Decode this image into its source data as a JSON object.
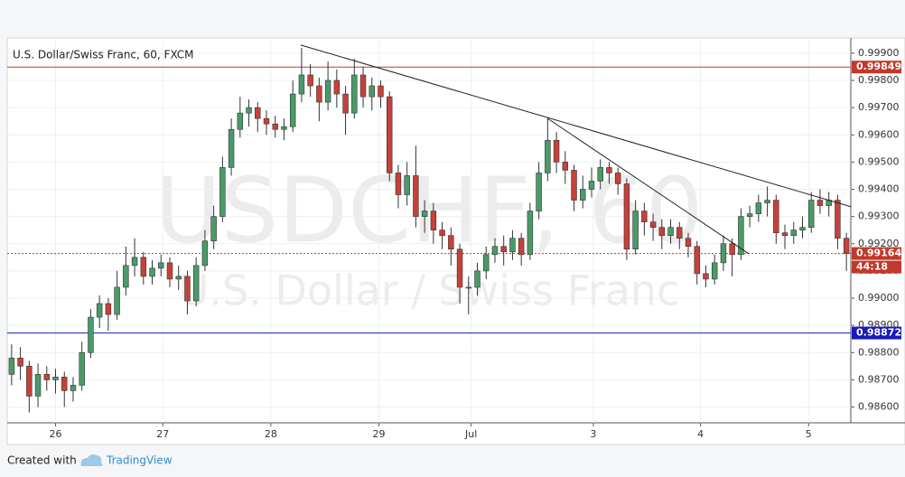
{
  "chart_data": {
    "type": "candlestick",
    "title": "U.S. Dollar/Swiss Franc, 60, FXCM",
    "watermark": "USDCHF, 60",
    "watermark_subtitle": "U.S. Dollar / Swiss Franc",
    "footer": {
      "prefix": "Created with",
      "brand": "TradingView"
    },
    "countdown": "44:18",
    "up_color": "#4a9a6a",
    "down_color": "#c8403a",
    "wick_color": "#333333",
    "grid": true,
    "xlim": [
      -0.5,
      95.5
    ],
    "xticks": [
      {
        "value": 5,
        "label": "26"
      },
      {
        "value": 17.2,
        "label": "27"
      },
      {
        "value": 29.5,
        "label": "28"
      },
      {
        "value": 41.8,
        "label": "29"
      },
      {
        "value": 52.3,
        "label": "Jul"
      },
      {
        "value": 66.2,
        "label": "3"
      },
      {
        "value": 78.4,
        "label": "4"
      },
      {
        "value": 90.7,
        "label": "5"
      }
    ],
    "ylim": [
      0.98542,
      0.99956
    ],
    "yticks": [
      {
        "value": 0.986,
        "label": "0.98600"
      },
      {
        "value": 0.987,
        "label": "0.98700"
      },
      {
        "value": 0.988,
        "label": "0.98800"
      },
      {
        "value": 0.989,
        "label": "0.98900"
      },
      {
        "value": 0.99,
        "label": "0.99000"
      },
      {
        "value": 0.991,
        "label": "0.99100"
      },
      {
        "value": 0.992,
        "label": "0.99200"
      },
      {
        "value": 0.993,
        "label": "0.99300"
      },
      {
        "value": 0.994,
        "label": "0.99400"
      },
      {
        "value": 0.995,
        "label": "0.99500"
      },
      {
        "value": 0.996,
        "label": "0.99600"
      },
      {
        "value": 0.997,
        "label": "0.99700"
      },
      {
        "value": 0.998,
        "label": "0.99800"
      },
      {
        "value": 0.999,
        "label": "0.99900"
      }
    ],
    "price_lines": [
      {
        "price": 0.99849,
        "color": "#c0392b",
        "style": "solid"
      },
      {
        "price": 0.98872,
        "color": "#1a1ab8",
        "style": "solid"
      },
      {
        "price": 0.99164,
        "color": "#c0392b",
        "style": "dotted"
      }
    ],
    "trend_lines": [
      {
        "x": [
          32.9,
          95.5
        ],
        "y": [
          0.9993,
          0.99336
        ]
      },
      {
        "x": [
          60.96,
          83.9
        ],
        "y": [
          0.99661,
          0.99163
        ]
      }
    ],
    "open": [
      0.9872,
      0.9878,
      0.9875,
      0.9864,
      0.9872,
      0.987,
      0.9871,
      0.9866,
      0.9868,
      0.988,
      0.9893,
      0.9898,
      0.9894,
      0.9904,
      0.9912,
      0.9915,
      0.9908,
      0.9911,
      0.9913,
      0.9907,
      0.9908,
      0.9899,
      0.9912,
      0.9921,
      0.993,
      0.9948,
      0.9962,
      0.9968,
      0.997,
      0.9966,
      0.9964,
      0.9962,
      0.9963,
      0.9975,
      0.9982,
      0.9978,
      0.9972,
      0.998,
      0.9975,
      0.9968,
      0.9982,
      0.9974,
      0.9978,
      0.9974,
      0.9946,
      0.9938,
      0.9945,
      0.993,
      0.9932,
      0.9925,
      0.9923,
      0.9918,
      0.9904,
      0.9904,
      0.991,
      0.9916,
      0.9919,
      0.9917,
      0.9922,
      0.9916,
      0.9932,
      0.9946,
      0.9958,
      0.995,
      0.9947,
      0.9936,
      0.994,
      0.9943,
      0.9948,
      0.9946,
      0.9942,
      0.9918,
      0.9932,
      0.9928,
      0.9926,
      0.9923,
      0.9926,
      0.9922,
      0.9919,
      0.9909,
      0.9907,
      0.9913,
      0.992,
      0.9916,
      0.993,
      0.9931,
      0.9935,
      0.9936,
      0.9924,
      0.9923,
      0.9925,
      0.9926,
      0.9936,
      0.9934,
      0.9936,
      0.9922
    ],
    "high": [
      0.9883,
      0.9882,
      0.9877,
      0.9876,
      0.9875,
      0.9874,
      0.9873,
      0.9871,
      0.9884,
      0.9896,
      0.9901,
      0.99,
      0.991,
      0.9919,
      0.9922,
      0.9917,
      0.9914,
      0.9916,
      0.9915,
      0.9912,
      0.991,
      0.9915,
      0.9925,
      0.9934,
      0.9952,
      0.9966,
      0.9974,
      0.9973,
      0.9972,
      0.9969,
      0.9967,
      0.9966,
      0.998,
      0.9992,
      0.9986,
      0.9981,
      0.9987,
      0.9984,
      0.9978,
      0.9988,
      0.9985,
      0.9981,
      0.998,
      0.9976,
      0.9949,
      0.995,
      0.9956,
      0.9936,
      0.9935,
      0.9928,
      0.9926,
      0.992,
      0.9908,
      0.9913,
      0.9919,
      0.9922,
      0.9923,
      0.9925,
      0.9924,
      0.9935,
      0.995,
      0.9966,
      0.9961,
      0.9954,
      0.9949,
      0.9945,
      0.9948,
      0.9951,
      0.995,
      0.9948,
      0.9944,
      0.9936,
      0.9935,
      0.9931,
      0.9929,
      0.9929,
      0.9928,
      0.9924,
      0.9921,
      0.9912,
      0.9916,
      0.9923,
      0.9922,
      0.9933,
      0.9934,
      0.9938,
      0.9941,
      0.9938,
      0.9927,
      0.9928,
      0.993,
      0.9939,
      0.994,
      0.9939,
      0.9938,
      0.9924
    ],
    "low": [
      0.9868,
      0.987,
      0.9858,
      0.986,
      0.9866,
      0.9865,
      0.986,
      0.9862,
      0.9866,
      0.9878,
      0.9889,
      0.9888,
      0.9892,
      0.9901,
      0.9908,
      0.9905,
      0.9905,
      0.9908,
      0.9904,
      0.9903,
      0.9894,
      0.9897,
      0.991,
      0.9918,
      0.9928,
      0.9945,
      0.9959,
      0.9963,
      0.9961,
      0.996,
      0.9959,
      0.9958,
      0.9961,
      0.9972,
      0.9974,
      0.9965,
      0.9969,
      0.997,
      0.996,
      0.9966,
      0.997,
      0.9969,
      0.997,
      0.9943,
      0.9933,
      0.9934,
      0.9926,
      0.9924,
      0.992,
      0.9918,
      0.9912,
      0.9898,
      0.9894,
      0.9901,
      0.9907,
      0.9913,
      0.9912,
      0.9914,
      0.9912,
      0.9914,
      0.9929,
      0.9943,
      0.9946,
      0.9942,
      0.9932,
      0.9933,
      0.9937,
      0.994,
      0.9942,
      0.9938,
      0.9914,
      0.9916,
      0.9923,
      0.9921,
      0.9918,
      0.992,
      0.9918,
      0.9915,
      0.9905,
      0.9904,
      0.9905,
      0.991,
      0.9908,
      0.9914,
      0.9926,
      0.9928,
      0.993,
      0.992,
      0.9918,
      0.992,
      0.9922,
      0.9924,
      0.9931,
      0.993,
      0.9918,
      0.991
    ],
    "close": [
      0.9878,
      0.9875,
      0.9864,
      0.9872,
      0.987,
      0.9871,
      0.9866,
      0.9868,
      0.988,
      0.9893,
      0.9898,
      0.9894,
      0.9904,
      0.9912,
      0.9915,
      0.9908,
      0.9911,
      0.9913,
      0.9907,
      0.9908,
      0.9899,
      0.9912,
      0.9921,
      0.993,
      0.9948,
      0.9962,
      0.9968,
      0.997,
      0.9966,
      0.9964,
      0.9962,
      0.9963,
      0.9975,
      0.9982,
      0.9978,
      0.9972,
      0.998,
      0.9975,
      0.9968,
      0.9982,
      0.9974,
      0.9978,
      0.9974,
      0.9946,
      0.9938,
      0.9945,
      0.993,
      0.9932,
      0.9925,
      0.9923,
      0.9918,
      0.9904,
      0.9904,
      0.991,
      0.9916,
      0.9919,
      0.9917,
      0.9922,
      0.9916,
      0.9932,
      0.9946,
      0.9958,
      0.995,
      0.9947,
      0.9936,
      0.994,
      0.9943,
      0.9948,
      0.9946,
      0.9942,
      0.9918,
      0.9932,
      0.9928,
      0.9926,
      0.9923,
      0.9926,
      0.9922,
      0.9919,
      0.9909,
      0.9907,
      0.9913,
      0.992,
      0.9916,
      0.993,
      0.9931,
      0.9935,
      0.9936,
      0.9924,
      0.9923,
      0.9925,
      0.9926,
      0.9936,
      0.9934,
      0.9936,
      0.9922,
      0.99164
    ]
  }
}
